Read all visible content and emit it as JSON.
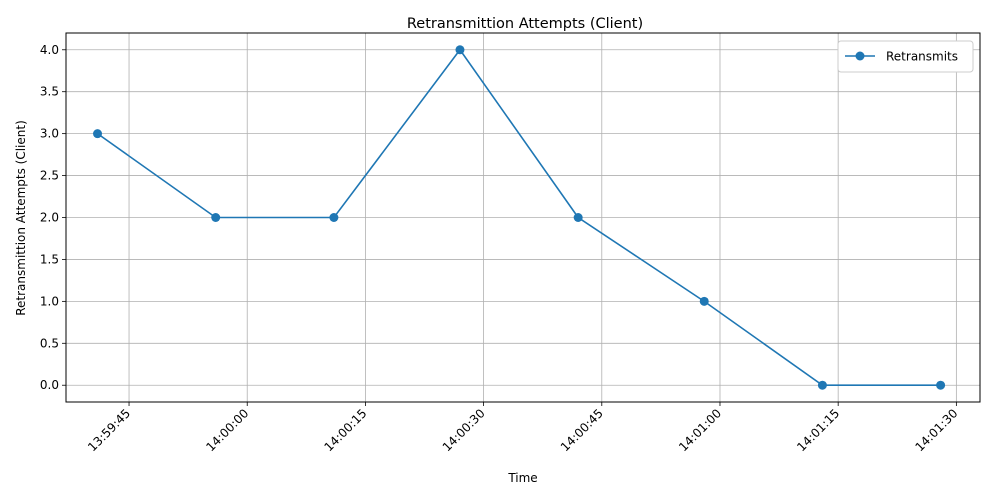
{
  "chart_data": {
    "type": "line",
    "title": "Retransmittion Attempts (Client)",
    "xlabel": "Time",
    "ylabel": "Retransmittion Attempts (Client)",
    "x_type": "time",
    "x_range": [
      "13:59:37",
      "14:01:33"
    ],
    "ylim": [
      -0.2,
      4.2
    ],
    "y_ticks": [
      0.0,
      0.5,
      1.0,
      1.5,
      2.0,
      2.5,
      3.0,
      3.5,
      4.0
    ],
    "x_ticks": [
      "13:59:45",
      "14:00:00",
      "14:00:15",
      "14:00:30",
      "14:00:45",
      "14:01:00",
      "14:01:15",
      "14:01:30"
    ],
    "grid": true,
    "legend_position": "top-right",
    "series": [
      {
        "name": "Retransmits",
        "color": "#1f77b4",
        "marker": "circle",
        "x": [
          "13:59:41",
          "13:59:56",
          "14:00:11",
          "14:00:27",
          "14:00:42",
          "14:00:58",
          "14:01:13",
          "14:01:28"
        ],
        "values": [
          3,
          2,
          2,
          4,
          2,
          1,
          0,
          0
        ]
      }
    ]
  }
}
